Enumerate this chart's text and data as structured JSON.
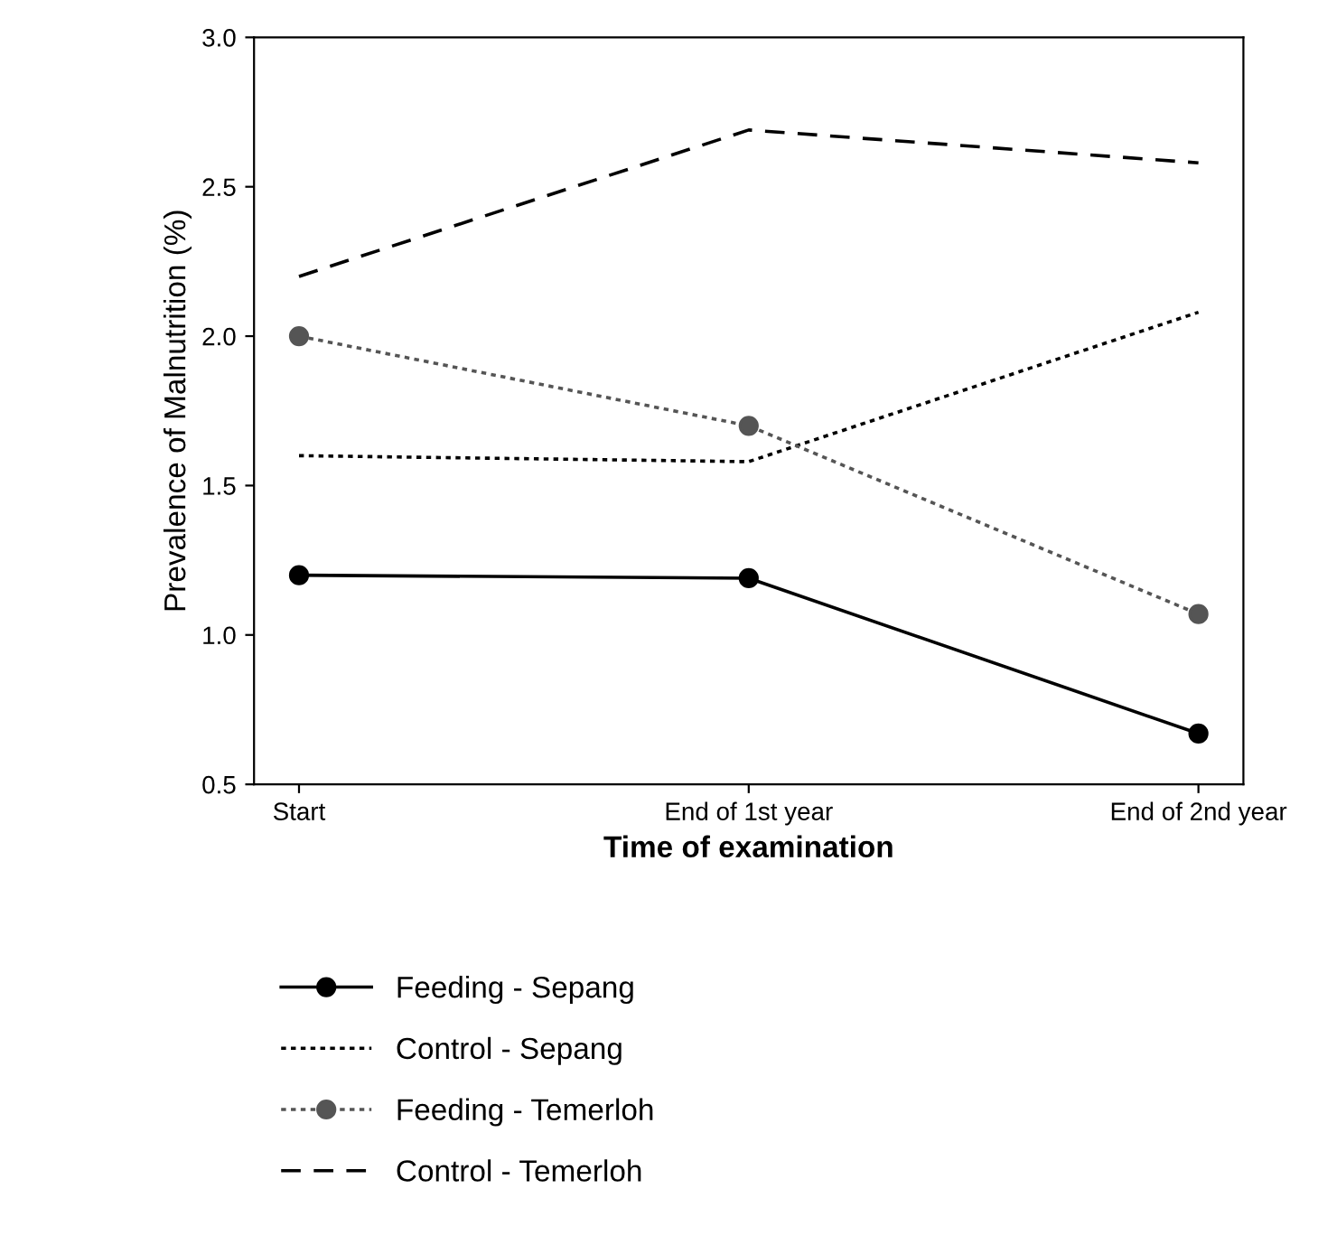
{
  "chart_data": {
    "type": "line",
    "xlabel": "Time of examination",
    "ylabel": "Prevalence of Malnutrition (%)",
    "categories": [
      "Start",
      "End of 1st year",
      "End of 2nd year"
    ],
    "series": [
      {
        "name": "Feeding - Sepang",
        "color": "#000000",
        "values": [
          1.2,
          1.19,
          0.67
        ],
        "marker": "circle",
        "line_style": "solid"
      },
      {
        "name": "Control - Sepang",
        "color": "#000000",
        "values": [
          1.6,
          1.58,
          2.08
        ],
        "marker": "none",
        "line_style": "dotted"
      },
      {
        "name": "Feeding - Temerloh",
        "color": "#555555",
        "values": [
          2.0,
          1.7,
          1.07
        ],
        "marker": "circle",
        "line_style": "dotted"
      },
      {
        "name": "Control - Temerloh",
        "color": "#000000",
        "values": [
          2.2,
          2.69,
          2.58
        ],
        "marker": "none",
        "line_style": "dashed"
      }
    ],
    "ylim": [
      0.5,
      3.0
    ],
    "yticks": [
      0.5,
      {
        "value": 1,
        "label": "1.0"
      },
      1.5,
      {
        "value": 2,
        "label": "2.0"
      },
      2.5,
      {
        "value": 3,
        "label": "3.0"
      }
    ],
    "grid": false,
    "legend": "bottom"
  }
}
